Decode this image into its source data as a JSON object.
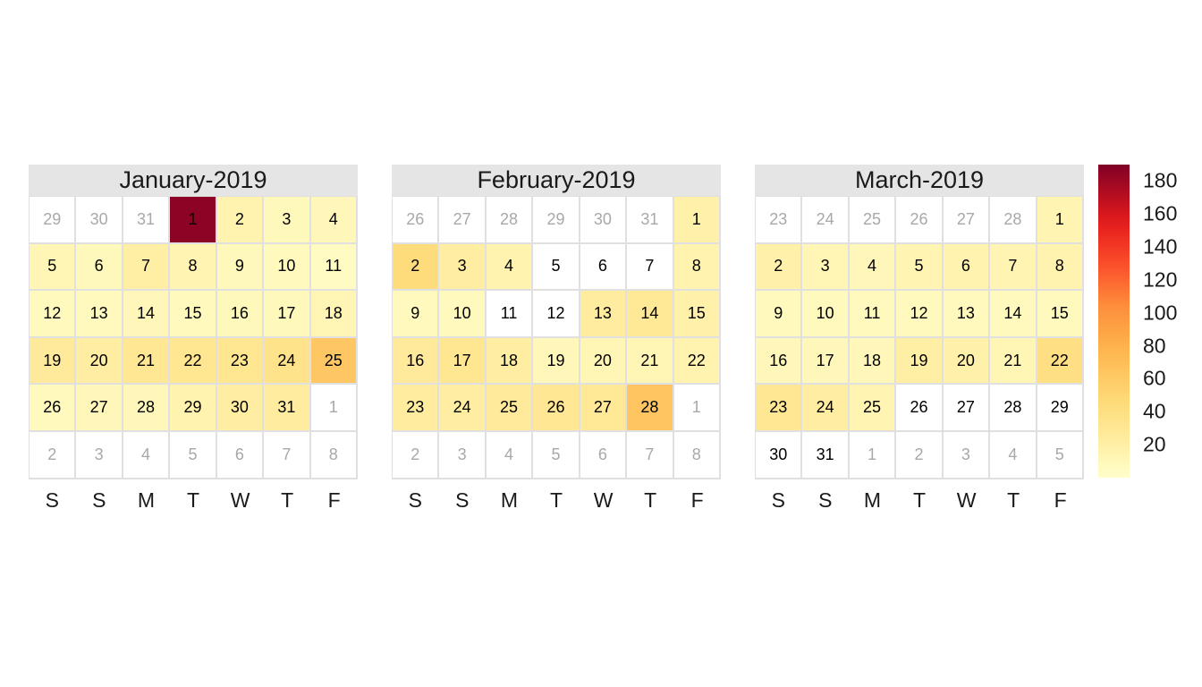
{
  "chart_data": {
    "type": "heatmap",
    "subtype": "calendar",
    "weekday_labels": [
      "S",
      "S",
      "M",
      "T",
      "W",
      "T",
      "F"
    ],
    "color_scale": {
      "low": "#ffffcc",
      "mid1": "#fed976",
      "mid2": "#fd8d3c",
      "mid3": "#e31a1c",
      "high": "#800026",
      "min": 0,
      "max": 190
    },
    "legend": {
      "ticks": [
        20,
        40,
        60,
        80,
        100,
        120,
        140,
        160,
        180
      ],
      "position": "right"
    },
    "months": [
      {
        "title": "January-2019",
        "weeks": [
          [
            {
              "d": "29",
              "o": true
            },
            {
              "d": "30",
              "o": true
            },
            {
              "d": "31",
              "o": true
            },
            {
              "d": "1",
              "v": 186
            },
            {
              "d": "2",
              "v": 15
            },
            {
              "d": "3",
              "v": 9
            },
            {
              "d": "4",
              "v": 10
            }
          ],
          [
            {
              "d": "5",
              "v": 12
            },
            {
              "d": "6",
              "v": 9
            },
            {
              "d": "7",
              "v": 20
            },
            {
              "d": "8",
              "v": 14
            },
            {
              "d": "9",
              "v": 9
            },
            {
              "d": "10",
              "v": 7
            },
            {
              "d": "11",
              "v": 5
            }
          ],
          [
            {
              "d": "12",
              "v": 8
            },
            {
              "d": "13",
              "v": 8
            },
            {
              "d": "14",
              "v": 10
            },
            {
              "d": "15",
              "v": 8
            },
            {
              "d": "16",
              "v": 9
            },
            {
              "d": "17",
              "v": 9
            },
            {
              "d": "18",
              "v": 12
            }
          ],
          [
            {
              "d": "19",
              "v": 26
            },
            {
              "d": "20",
              "v": 22
            },
            {
              "d": "21",
              "v": 30
            },
            {
              "d": "22",
              "v": 32
            },
            {
              "d": "23",
              "v": 32
            },
            {
              "d": "24",
              "v": 35
            },
            {
              "d": "25",
              "v": 62
            }
          ],
          [
            {
              "d": "26",
              "v": 8
            },
            {
              "d": "27",
              "v": 10
            },
            {
              "d": "28",
              "v": 10
            },
            {
              "d": "29",
              "v": 15
            },
            {
              "d": "30",
              "v": 22
            },
            {
              "d": "31",
              "v": 24
            },
            {
              "d": "1",
              "o": true
            }
          ],
          [
            {
              "d": "2",
              "o": true
            },
            {
              "d": "3",
              "o": true
            },
            {
              "d": "4",
              "o": true
            },
            {
              "d": "5",
              "o": true
            },
            {
              "d": "6",
              "o": true
            },
            {
              "d": "7",
              "o": true
            },
            {
              "d": "8",
              "o": true
            }
          ]
        ]
      },
      {
        "title": "February-2019",
        "weeks": [
          [
            {
              "d": "26",
              "o": true
            },
            {
              "d": "27",
              "o": true
            },
            {
              "d": "28",
              "o": true
            },
            {
              "d": "29",
              "o": true
            },
            {
              "d": "30",
              "o": true
            },
            {
              "d": "31",
              "o": true
            },
            {
              "d": "1",
              "v": 18
            }
          ],
          [
            {
              "d": "2",
              "v": 44
            },
            {
              "d": "3",
              "v": 22
            },
            {
              "d": "4",
              "v": 15
            },
            {
              "d": "5",
              "v": 0
            },
            {
              "d": "6",
              "v": 0
            },
            {
              "d": "7",
              "v": 0
            },
            {
              "d": "8",
              "v": 15
            }
          ],
          [
            {
              "d": "9",
              "v": 8
            },
            {
              "d": "10",
              "v": 7
            },
            {
              "d": "11",
              "v": 0
            },
            {
              "d": "12",
              "v": 0
            },
            {
              "d": "13",
              "v": 24
            },
            {
              "d": "14",
              "v": 28
            },
            {
              "d": "15",
              "v": 18
            }
          ],
          [
            {
              "d": "16",
              "v": 26
            },
            {
              "d": "17",
              "v": 32
            },
            {
              "d": "18",
              "v": 22
            },
            {
              "d": "19",
              "v": 10
            },
            {
              "d": "20",
              "v": 12
            },
            {
              "d": "21",
              "v": 12
            },
            {
              "d": "22",
              "v": 15
            }
          ],
          [
            {
              "d": "23",
              "v": 24
            },
            {
              "d": "24",
              "v": 22
            },
            {
              "d": "25",
              "v": 26
            },
            {
              "d": "26",
              "v": 30
            },
            {
              "d": "27",
              "v": 28
            },
            {
              "d": "28",
              "v": 64
            },
            {
              "d": "1",
              "o": true
            }
          ],
          [
            {
              "d": "2",
              "o": true
            },
            {
              "d": "3",
              "o": true
            },
            {
              "d": "4",
              "o": true
            },
            {
              "d": "5",
              "o": true
            },
            {
              "d": "6",
              "o": true
            },
            {
              "d": "7",
              "o": true
            },
            {
              "d": "8",
              "o": true
            }
          ]
        ]
      },
      {
        "title": "March-2019",
        "weeks": [
          [
            {
              "d": "23",
              "o": true
            },
            {
              "d": "24",
              "o": true
            },
            {
              "d": "25",
              "o": true
            },
            {
              "d": "26",
              "o": true
            },
            {
              "d": "27",
              "o": true
            },
            {
              "d": "28",
              "o": true
            },
            {
              "d": "1",
              "v": 14
            }
          ],
          [
            {
              "d": "2",
              "v": 18
            },
            {
              "d": "3",
              "v": 12
            },
            {
              "d": "4",
              "v": 10
            },
            {
              "d": "5",
              "v": 14
            },
            {
              "d": "6",
              "v": 15
            },
            {
              "d": "7",
              "v": 14
            },
            {
              "d": "8",
              "v": 15
            }
          ],
          [
            {
              "d": "9",
              "v": 8
            },
            {
              "d": "10",
              "v": 8
            },
            {
              "d": "11",
              "v": 8
            },
            {
              "d": "12",
              "v": 8
            },
            {
              "d": "13",
              "v": 8
            },
            {
              "d": "14",
              "v": 8
            },
            {
              "d": "15",
              "v": 8
            }
          ],
          [
            {
              "d": "16",
              "v": 10
            },
            {
              "d": "17",
              "v": 10
            },
            {
              "d": "18",
              "v": 10
            },
            {
              "d": "19",
              "v": 20
            },
            {
              "d": "20",
              "v": 18
            },
            {
              "d": "21",
              "v": 12
            },
            {
              "d": "22",
              "v": 40
            }
          ],
          [
            {
              "d": "23",
              "v": 30
            },
            {
              "d": "24",
              "v": 22
            },
            {
              "d": "25",
              "v": 14
            },
            {
              "d": "26",
              "v": 0
            },
            {
              "d": "27",
              "v": 0
            },
            {
              "d": "28",
              "v": 0
            },
            {
              "d": "29",
              "v": 0
            }
          ],
          [
            {
              "d": "30",
              "v": 0
            },
            {
              "d": "31",
              "v": 0
            },
            {
              "d": "1",
              "o": true
            },
            {
              "d": "2",
              "o": true
            },
            {
              "d": "3",
              "o": true
            },
            {
              "d": "4",
              "o": true
            },
            {
              "d": "5",
              "o": true
            }
          ]
        ]
      }
    ]
  }
}
